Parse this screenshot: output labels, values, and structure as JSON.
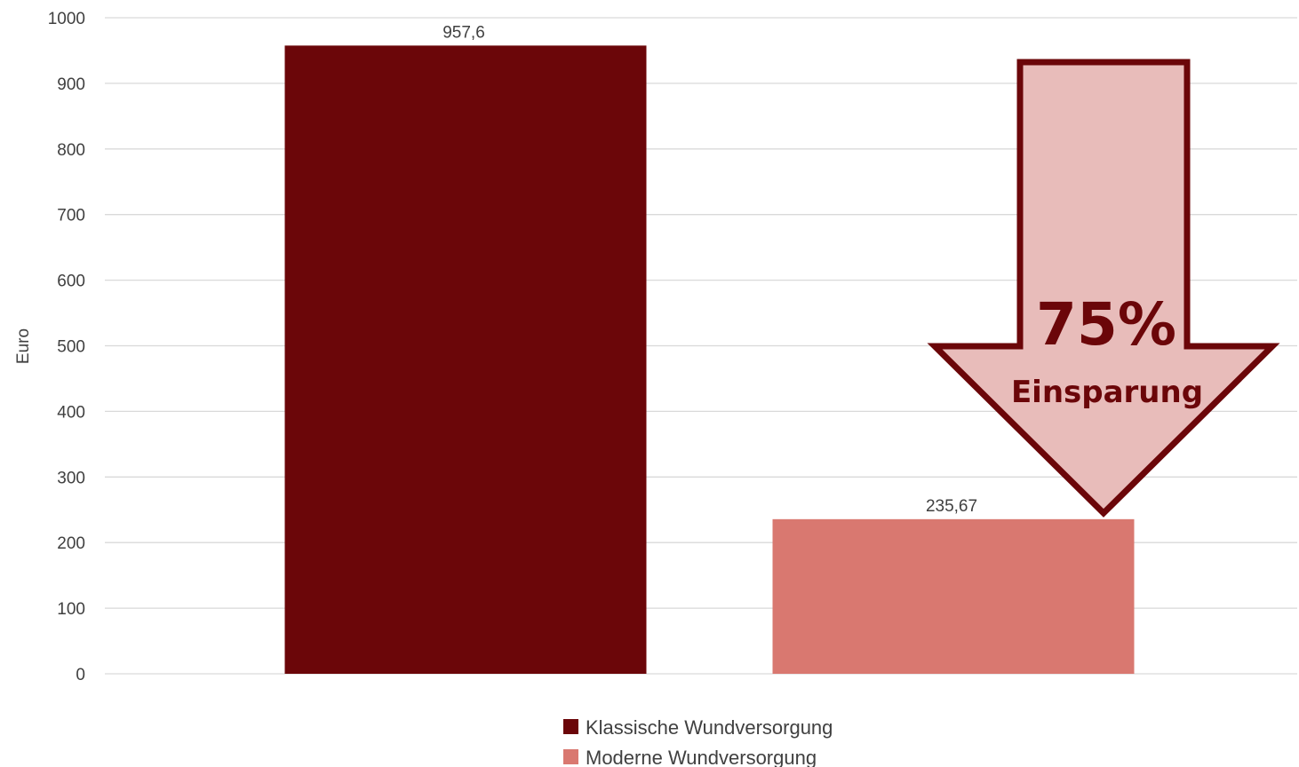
{
  "chart_data": {
    "type": "bar",
    "ylabel": "Euro",
    "ylim": [
      0,
      1000
    ],
    "yticks": [
      0,
      100,
      200,
      300,
      400,
      500,
      600,
      700,
      800,
      900,
      1000
    ],
    "grid": true,
    "legend_position": "bottom",
    "series": [
      {
        "name": "Klassische Wundversorgung",
        "value": 957.6,
        "label": "957,6",
        "color": "#6b0609"
      },
      {
        "name": "Moderne Wundversorgung",
        "value": 235.67,
        "label": "235,67",
        "color": "#d97870"
      }
    ],
    "annotation": {
      "shape": "down-arrow",
      "percent": "75%",
      "text": "Einsparung",
      "fill": "#e8bcba",
      "stroke": "#6b0609"
    }
  }
}
